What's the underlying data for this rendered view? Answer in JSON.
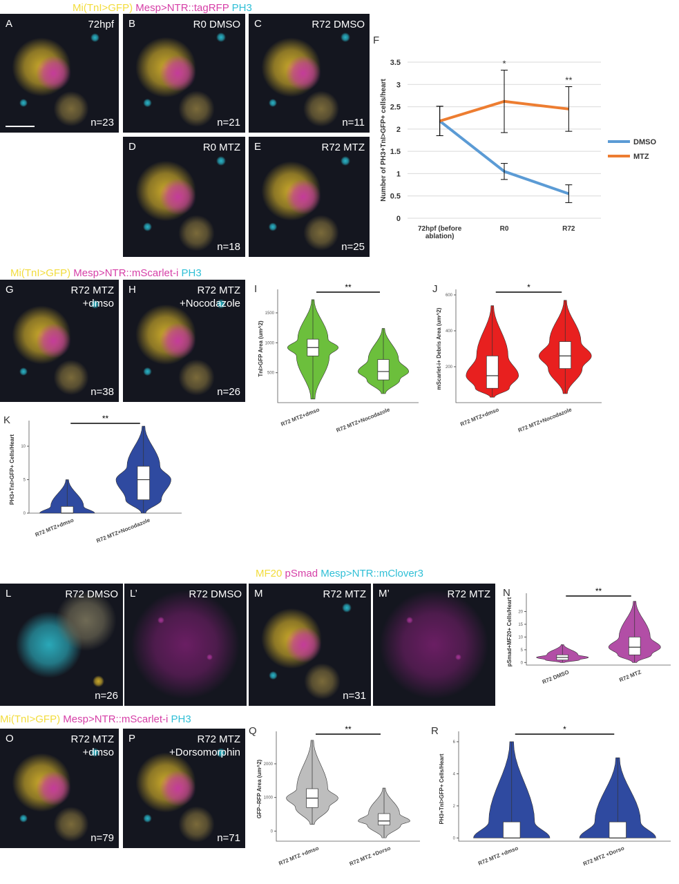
{
  "headers": [
    [
      {
        "text": "Mi(TnI>GFP)",
        "color": "#f2dc3c"
      },
      {
        "text": "Mesp>NTR::tagRFP",
        "color": "#d63fa7"
      },
      {
        "text": "PH3",
        "color": "#2fbfd6"
      }
    ],
    [
      {
        "text": "Mi(TnI>GFP)",
        "color": "#f2dc3c"
      },
      {
        "text": "Mesp>NTR::mScarlet-i",
        "color": "#d63fa7"
      },
      {
        "text": "PH3",
        "color": "#2fbfd6"
      }
    ],
    [
      {
        "text": "MF20",
        "color": "#f2dc3c"
      },
      {
        "text": "pSmad",
        "color": "#d63fa7"
      },
      {
        "text": "Mesp>NTR::mClover3",
        "color": "#2fbfd6"
      }
    ],
    [
      {
        "text": "Mi(TnI>GFP)",
        "color": "#f2dc3c"
      },
      {
        "text": "Mesp>NTR::mScarlet-i",
        "color": "#d63fa7"
      },
      {
        "text": "PH3",
        "color": "#2fbfd6"
      }
    ]
  ],
  "panels": [
    {
      "letter": "A",
      "label": [
        "72hpf"
      ],
      "n": "n=23"
    },
    {
      "letter": "B",
      "label": [
        "R0 DMSO"
      ],
      "n": "n=21"
    },
    {
      "letter": "C",
      "label": [
        "R72 DMSO"
      ],
      "n": "n=11"
    },
    {
      "letter": "D",
      "label": [
        "R0 MTZ"
      ],
      "n": "n=18"
    },
    {
      "letter": "E",
      "label": [
        "R72 MTZ"
      ],
      "n": "n=25"
    },
    {
      "letter": "G",
      "label": [
        "R72 MTZ",
        "+dmso"
      ],
      "n": "n=38"
    },
    {
      "letter": "H",
      "label": [
        "R72 MTZ",
        "+Nocodazole"
      ],
      "n": "n=26"
    },
    {
      "letter": "L",
      "label": [
        "R72 DMSO"
      ],
      "n": "n=26"
    },
    {
      "letter": "L’",
      "label": [
        "R72 DMSO"
      ]
    },
    {
      "letter": "M",
      "label": [
        "R72 MTZ"
      ],
      "n": "n=31"
    },
    {
      "letter": "M’",
      "label": [
        "R72 MTZ"
      ]
    },
    {
      "letter": "O",
      "label": [
        "R72 MTZ",
        "+dmso"
      ],
      "n": "n=79"
    },
    {
      "letter": "P",
      "label": [
        "R72 MTZ",
        "+Dorsomorphin"
      ],
      "n": "n=71"
    }
  ],
  "chart_data": [
    {
      "type": "line",
      "letter": "F",
      "ylabel": "Number of PH3+TnI>GFP+ cells/heart",
      "categories": [
        "72hpf (before ablation)",
        "R0",
        "R72"
      ],
      "series": [
        {
          "name": "DMSO",
          "color": "#5b9bd5",
          "values": [
            2.18,
            1.05,
            0.55
          ],
          "errors": [
            0.33,
            0.18,
            0.2
          ]
        },
        {
          "name": "MTZ",
          "color": "#ed7d31",
          "values": [
            2.18,
            2.62,
            2.45
          ],
          "errors": [
            0.33,
            0.7,
            0.5
          ]
        }
      ],
      "annotations": [
        null,
        "*",
        "**"
      ],
      "ylim": [
        0,
        3.5
      ],
      "yticks": [
        0,
        0.5,
        1,
        1.5,
        2,
        2.5,
        3,
        3.5
      ],
      "grid": true
    },
    {
      "type": "violin",
      "letter": "I",
      "ylabel": "TnI>GFP Area (um^2)",
      "categories": [
        "R72 MTZ+dmso",
        "R72 MTZ+Nocodazole"
      ],
      "color": "#6cbf3c",
      "stats": {
        "min": [
          60,
          150
        ],
        "q1": [
          780,
          380
        ],
        "median": [
          920,
          520
        ],
        "q3": [
          1060,
          720
        ],
        "max": [
          1720,
          1240
        ]
      },
      "significance": "**",
      "ylim": [
        0,
        1800
      ],
      "yticks": [
        500,
        1000,
        1500
      ]
    },
    {
      "type": "violin",
      "letter": "J",
      "ylabel": "mScarlet-i+ Debris Area (um^2)",
      "categories": [
        "R72 MTZ+dmso",
        "R72 MTZ+Nocodazole"
      ],
      "color": "#e8201f",
      "stats": {
        "min": [
          30,
          50
        ],
        "q1": [
          80,
          190
        ],
        "median": [
          150,
          260
        ],
        "q3": [
          260,
          340
        ],
        "max": [
          540,
          570
        ]
      },
      "significance": "*",
      "ylim": [
        0,
        600
      ],
      "yticks": [
        200,
        400,
        600
      ]
    },
    {
      "type": "violin",
      "letter": "K",
      "ylabel": "PH3+TnI>GFP+ Cells/Heart",
      "categories": [
        "R72 MTZ+dmso",
        "R72 MTZ+Nocodazole"
      ],
      "color": "#2f4aa0",
      "stats": {
        "min": [
          0,
          0
        ],
        "q1": [
          0,
          2
        ],
        "median": [
          0,
          5
        ],
        "q3": [
          1,
          7
        ],
        "max": [
          5,
          13
        ]
      },
      "significance": "**",
      "ylim": [
        0,
        13
      ],
      "yticks": [
        0,
        5,
        10
      ]
    },
    {
      "type": "violin",
      "letter": "N",
      "ylabel": "pSmad+MF20+ Cells/Heart",
      "categories": [
        "R72 DMSO",
        "R72 MTZ"
      ],
      "color": "#b24ea6",
      "stats": {
        "min": [
          0,
          0
        ],
        "q1": [
          1,
          3
        ],
        "median": [
          2,
          6
        ],
        "q3": [
          3,
          10
        ],
        "max": [
          7,
          24
        ]
      },
      "significance": "**",
      "ylim": [
        -1,
        25
      ],
      "yticks": [
        0,
        5,
        10,
        15,
        20
      ]
    },
    {
      "type": "violin",
      "letter": "Q",
      "ylabel": "GFP~RFP Area (um^2)",
      "categories": [
        "R72 MTZ +dmso",
        "R72 MTZ +Dorso"
      ],
      "color": "#bdbdbd",
      "stats": {
        "min": [
          200,
          -200
        ],
        "q1": [
          700,
          180
        ],
        "median": [
          980,
          300
        ],
        "q3": [
          1260,
          520
        ],
        "max": [
          2700,
          1280
        ]
      },
      "significance": "**",
      "ylim": [
        -300,
        2800
      ],
      "yticks": [
        0,
        1000,
        2000
      ]
    },
    {
      "type": "violin",
      "letter": "R",
      "ylabel": "PH3+TnI>GFP+ Cells/Heart",
      "categories": [
        "R72 MTZ +dmso",
        "R72 MTZ +Dorso"
      ],
      "color": "#2f4aa0",
      "stats": {
        "min": [
          0,
          0
        ],
        "q1": [
          0,
          0
        ],
        "median": [
          0,
          0
        ],
        "q3": [
          1,
          1
        ],
        "max": [
          6,
          5
        ]
      },
      "significance": "*",
      "ylim": [
        -0.2,
        6.3
      ],
      "yticks": [
        0,
        2,
        4,
        6
      ]
    }
  ]
}
